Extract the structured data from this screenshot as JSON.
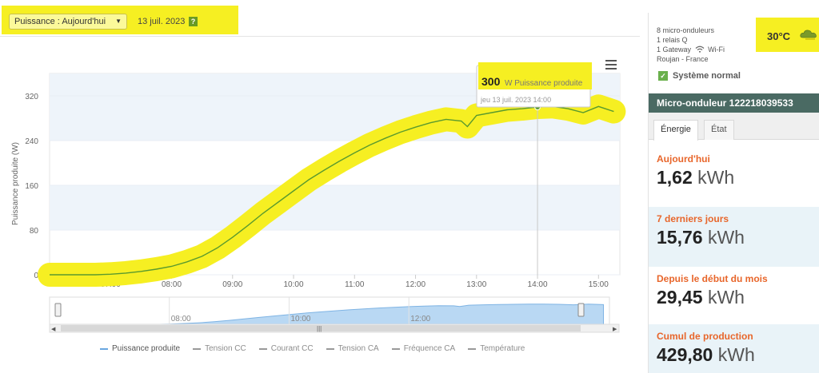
{
  "toolbar": {
    "view_select": "Puissance : Aujourd'hui",
    "date": "13 juil. 2023",
    "help": "?"
  },
  "chart_data": {
    "type": "line",
    "title": "",
    "ylabel": "Puissance produite (W)",
    "ylim": [
      0,
      360
    ],
    "yticks": [
      0,
      80,
      160,
      240,
      320
    ],
    "xticks": [
      "07:00",
      "08:00",
      "09:00",
      "10:00",
      "11:00",
      "12:00",
      "13:00",
      "14:00",
      "15:00"
    ],
    "series": [
      {
        "name": "Puissance produite",
        "x": [
          6.0,
          6.25,
          6.5,
          6.75,
          7.0,
          7.25,
          7.5,
          7.75,
          8.0,
          8.25,
          8.5,
          8.75,
          9.0,
          9.25,
          9.5,
          9.75,
          10.0,
          10.25,
          10.5,
          10.75,
          11.0,
          11.25,
          11.5,
          11.75,
          12.0,
          12.25,
          12.5,
          12.75,
          12.85,
          13.0,
          13.25,
          13.5,
          13.75,
          14.0,
          14.25,
          14.5,
          14.75,
          15.0,
          15.25
        ],
        "values": [
          0,
          0,
          0,
          0,
          1,
          3,
          6,
          10,
          15,
          23,
          33,
          48,
          67,
          88,
          110,
          130,
          150,
          170,
          187,
          203,
          218,
          232,
          244,
          255,
          264,
          272,
          278,
          275,
          265,
          285,
          290,
          295,
          297,
          300,
          301,
          297,
          290,
          301,
          292
        ]
      }
    ],
    "tooltip": {
      "value": "300",
      "unit": "W",
      "series": "Puissance produite",
      "date": "jeu 13 juil. 2023 14:00"
    },
    "navigator_ticks": [
      "08:00",
      "10:00",
      "12:00"
    ],
    "legend": [
      "Puissance produite",
      "Tension CC",
      "Courant CC",
      "Tension CA",
      "Fréquence CA",
      "Température"
    ],
    "colors": {
      "line": "#5a9a2e",
      "highlight": "#f6ef22",
      "navigator": "#b9d8f3",
      "legend_active": "#6aa7e0"
    }
  },
  "system": {
    "line1": "8 micro-onduleurs",
    "line2": "1 relais Q",
    "line3_prefix": "1 Gateway",
    "line3_suffix": "Wi-Fi",
    "line4": "Roujan - France",
    "temperature": "30°C",
    "status": "Système normal"
  },
  "device": {
    "title": "Micro-onduleur 122218039533",
    "tabs": [
      "Énergie",
      "État"
    ]
  },
  "stats": [
    {
      "label": "Aujourd'hui",
      "value": "1,62",
      "unit": "kWh"
    },
    {
      "label": "7 derniers jours",
      "value": "15,76",
      "unit": "kWh"
    },
    {
      "label": "Depuis le début du mois",
      "value": "29,45",
      "unit": "kWh"
    },
    {
      "label": "Cumul de production",
      "value": "429,80",
      "unit": "kWh"
    }
  ]
}
